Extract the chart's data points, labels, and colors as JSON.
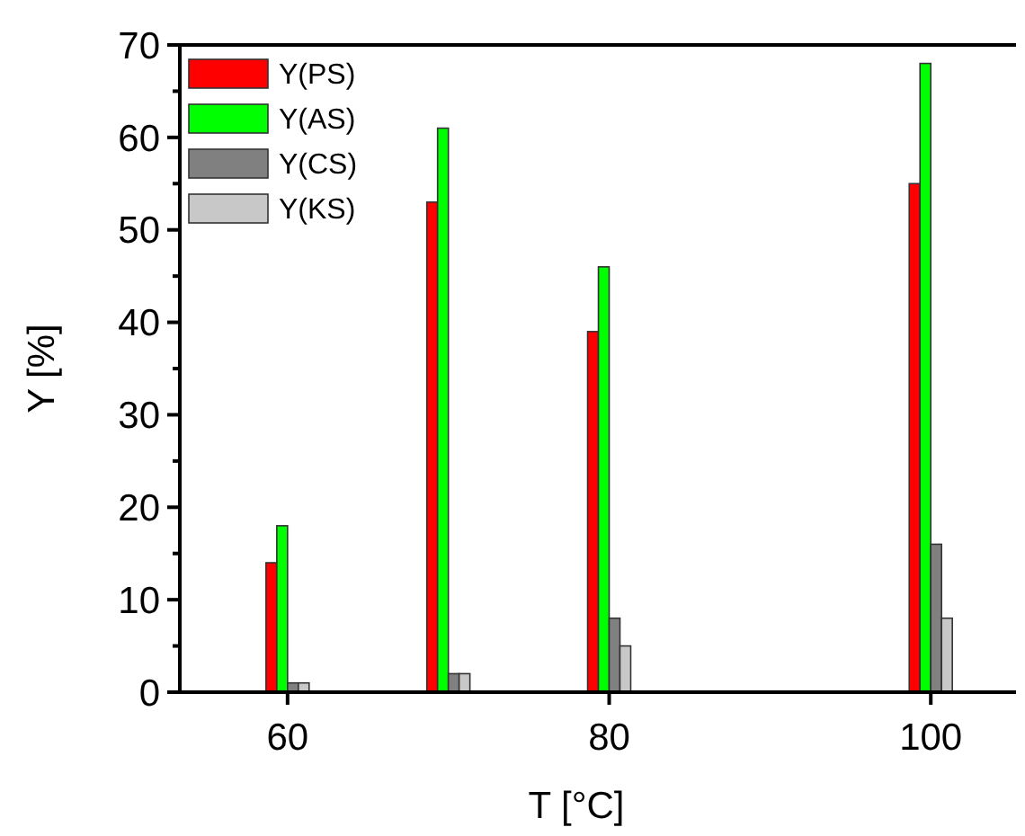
{
  "chart_data": {
    "type": "bar",
    "xlabel": "T [°C]",
    "ylabel": "Y [%]",
    "x": [
      60,
      70,
      80,
      100
    ],
    "series": [
      {
        "name": "Y(PS)",
        "color": "#ff0000",
        "values": [
          14,
          53,
          39,
          55
        ]
      },
      {
        "name": "Y(AS)",
        "color": "#00ff00",
        "values": [
          18,
          61,
          46,
          68
        ]
      },
      {
        "name": "Y(CS)",
        "color": "#808080",
        "values": [
          1,
          2,
          8,
          16
        ]
      },
      {
        "name": "Y(KS)",
        "color": "#c8c8c8",
        "values": [
          1,
          2,
          5,
          8
        ]
      }
    ],
    "xlim": [
      53.3,
      105.3
    ],
    "xticks": [
      60,
      80,
      100
    ],
    "ylim": [
      0,
      70
    ],
    "yticks": [
      0,
      {
        "value": 5,
        "label": null
      },
      10,
      {
        "value": 15,
        "label": null
      },
      20,
      {
        "value": 25,
        "label": null
      },
      30,
      {
        "value": 35,
        "label": null
      },
      40,
      {
        "value": 45,
        "label": null
      },
      50,
      {
        "value": 55,
        "label": null
      },
      60,
      {
        "value": 65,
        "label": null
      },
      70
    ],
    "legend": "top left",
    "grid": false
  }
}
